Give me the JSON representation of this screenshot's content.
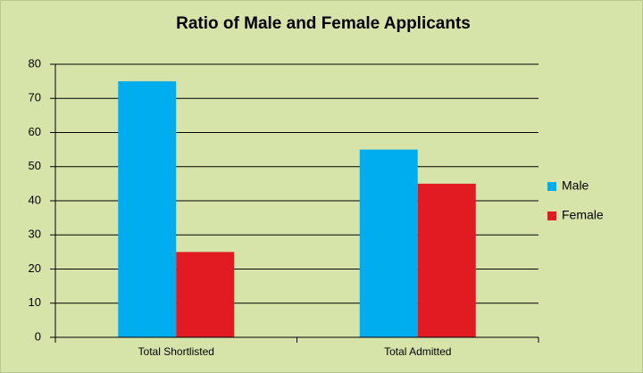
{
  "chart_data": {
    "type": "bar",
    "title": "Ratio of Male and Female Applicants",
    "categories": [
      "Total Shortlisted",
      "Total Admitted"
    ],
    "series": [
      {
        "name": "Male",
        "color": "#00aeef",
        "values": [
          75,
          55
        ]
      },
      {
        "name": "Female",
        "color": "#e21b23",
        "values": [
          25,
          45
        ]
      }
    ],
    "ylim": [
      0,
      80
    ],
    "yticks": [
      0,
      10,
      20,
      30,
      40,
      50,
      60,
      70,
      80
    ],
    "grid": true,
    "legend": "right"
  }
}
